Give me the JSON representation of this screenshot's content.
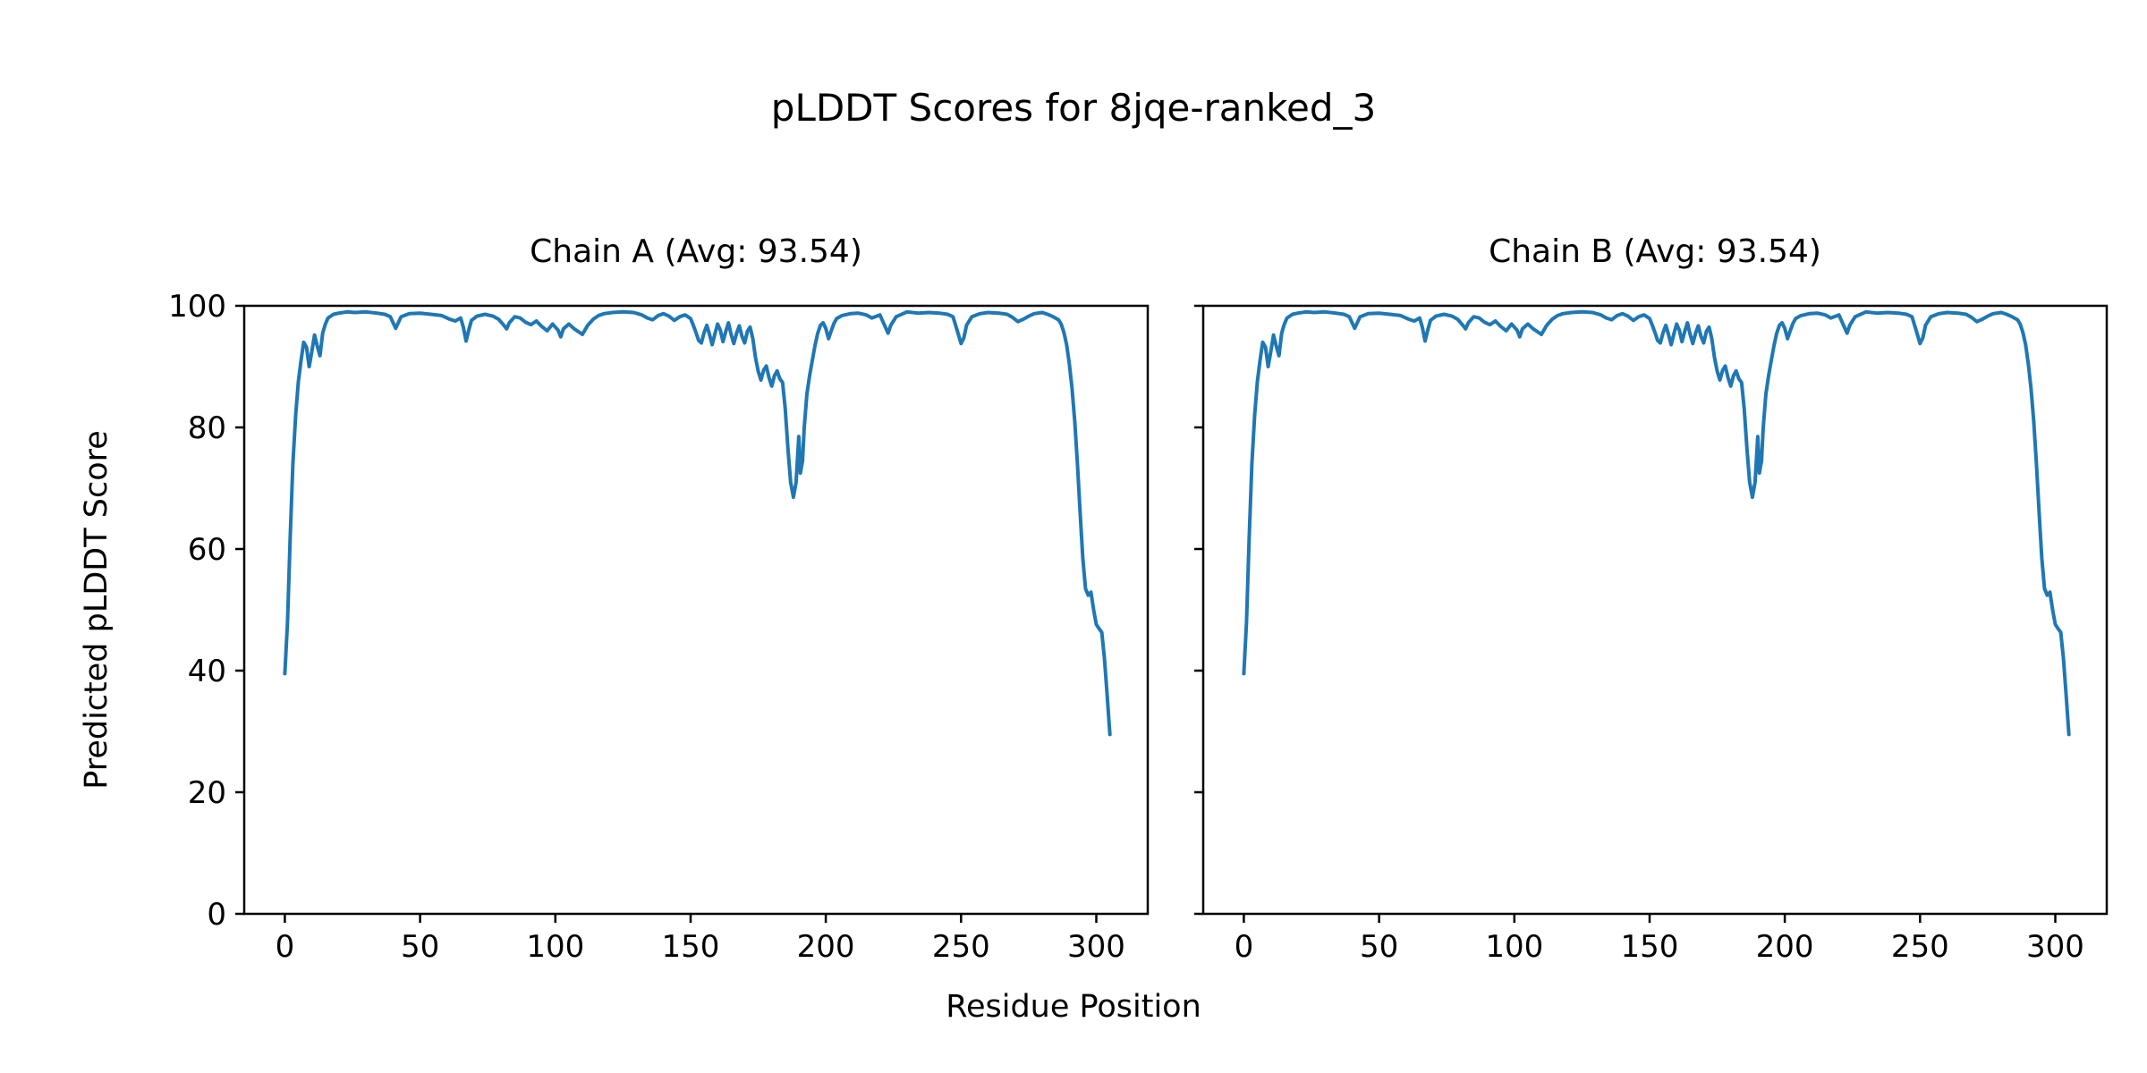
{
  "chart_data": {
    "type": "line",
    "title": "pLDDT Scores for 8jqe-ranked_3",
    "xlabel": "Residue Position",
    "ylabel": "Predicted pLDDT Score",
    "xlim": [
      -15,
      319
    ],
    "ylim": [
      0,
      100
    ],
    "xticks": [
      0,
      50,
      100,
      150,
      200,
      250,
      300
    ],
    "yticks": [
      0,
      20,
      40,
      60,
      80,
      100
    ],
    "grid": false,
    "legend": "none",
    "line_color": "#1f77b4",
    "axis_color": "#000000",
    "subplots": [
      {
        "label": "Chain A",
        "avg": 93.54,
        "title": "Chain A (Avg: 93.54)"
      },
      {
        "label": "Chain B",
        "avg": 93.54,
        "title": "Chain B (Avg: 93.54)"
      }
    ],
    "x": [
      0,
      1,
      2,
      3,
      4,
      5,
      6,
      7,
      8,
      9,
      10,
      11,
      12,
      13,
      14,
      15,
      16,
      18,
      20,
      23,
      26,
      30,
      34,
      37,
      39,
      41,
      43,
      46,
      50,
      54,
      58,
      61,
      63,
      65,
      66,
      67,
      68,
      69,
      71,
      74,
      77,
      79,
      81,
      82,
      83,
      85,
      87,
      89,
      91,
      93,
      95,
      97,
      99,
      101,
      102,
      103,
      105,
      107,
      109,
      110,
      112,
      114,
      116,
      118,
      121,
      125,
      129,
      132,
      134,
      136,
      138,
      140,
      142,
      144,
      146,
      148,
      150,
      151,
      152,
      153,
      154,
      155,
      156,
      157,
      158,
      159,
      160,
      161,
      162,
      163,
      164,
      165,
      166,
      167,
      168,
      169,
      170,
      171,
      172,
      173,
      174,
      175,
      176,
      177,
      178,
      179,
      180,
      181,
      182,
      183,
      184,
      185,
      186,
      187,
      188,
      189,
      190,
      190.6,
      191.4,
      192,
      193,
      194,
      195,
      196,
      197,
      198,
      199,
      200,
      201,
      202,
      203,
      204,
      206,
      209,
      212,
      215,
      217,
      220,
      222,
      223,
      224,
      226,
      230,
      234,
      238,
      242,
      245,
      247,
      249,
      250,
      251,
      252,
      254,
      257,
      260,
      264,
      267,
      269,
      271,
      273,
      275,
      277,
      280,
      282,
      284,
      286,
      287,
      288,
      289,
      290,
      291,
      292,
      293,
      294,
      295,
      296,
      297,
      298,
      299,
      300,
      301,
      302,
      303,
      304,
      305
    ],
    "y": [
      39.5,
      48,
      62,
      74,
      82,
      87.5,
      91,
      94,
      93.2,
      90,
      92.5,
      95.2,
      93.4,
      91.8,
      95.5,
      97,
      98,
      98.6,
      98.8,
      99,
      98.9,
      99,
      98.8,
      98.6,
      98.2,
      96.3,
      98.2,
      98.7,
      98.8,
      98.6,
      98.4,
      97.8,
      97.5,
      98,
      96.5,
      94.2,
      96,
      97.6,
      98.3,
      98.6,
      98.3,
      97.8,
      96.8,
      96.2,
      97.2,
      98.2,
      98,
      97.3,
      96.9,
      97.5,
      96.6,
      95.9,
      97,
      96,
      94.9,
      96.2,
      97,
      96.2,
      95.6,
      95.3,
      96.8,
      97.8,
      98.4,
      98.7,
      98.9,
      99,
      98.9,
      98.5,
      98,
      97.7,
      98.4,
      98.7,
      98.3,
      97.6,
      98.2,
      98.5,
      97.9,
      96.8,
      95.6,
      94.3,
      93.9,
      95.6,
      96.8,
      95.3,
      93.6,
      95.4,
      97,
      96,
      94.1,
      95.8,
      97.2,
      95.3,
      93.8,
      95.5,
      96.7,
      95,
      93.9,
      95.8,
      96.5,
      94.6,
      91.5,
      89.2,
      87.8,
      89.4,
      90.1,
      88.2,
      86.8,
      88.5,
      89.3,
      88,
      87.4,
      83,
      76.5,
      71,
      68.5,
      71,
      78.5,
      72.5,
      74.5,
      80,
      85.5,
      88.5,
      91,
      93.5,
      95.5,
      96.8,
      97.2,
      96.3,
      94.6,
      95.9,
      97.1,
      97.9,
      98.4,
      98.7,
      98.8,
      98.5,
      98,
      98.5,
      96.5,
      95.5,
      96.8,
      98.2,
      99,
      98.8,
      98.9,
      98.8,
      98.6,
      98.2,
      95.3,
      93.8,
      94.7,
      96.8,
      98.2,
      98.7,
      98.9,
      98.8,
      98.6,
      98.1,
      97.4,
      97.8,
      98.3,
      98.7,
      98.9,
      98.6,
      98.2,
      97.7,
      97,
      95.6,
      93.6,
      90.5,
      86.5,
      81,
      74,
      66,
      58.5,
      53.5,
      52.4,
      52.9,
      50,
      47.6,
      46.9,
      46.3,
      42,
      36,
      29.5
    ]
  }
}
